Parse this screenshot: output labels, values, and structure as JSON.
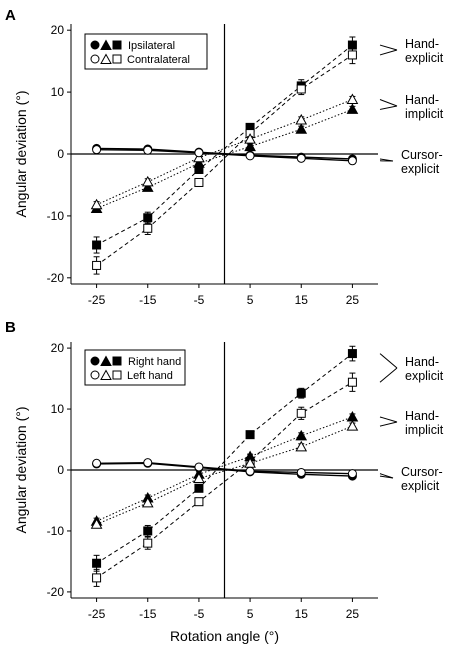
{
  "chart_data": [
    {
      "panel": "A",
      "type": "line",
      "xlabel": "",
      "ylabel": "Angular deviation (°)",
      "xlim": [
        -30,
        30
      ],
      "ylim": [
        -21,
        21
      ],
      "x_ticks": [
        -25,
        -15,
        -5,
        5,
        15,
        25
      ],
      "y_ticks": [
        -20,
        -10,
        0,
        10,
        20
      ],
      "legend": {
        "position": "top-left",
        "entries": [
          {
            "symbols": "●▲■",
            "label": "Ipsilateral"
          },
          {
            "symbols": "○△□",
            "label": "Contralateral"
          }
        ]
      },
      "x": [
        -25,
        -15,
        -5,
        5,
        15,
        25
      ],
      "series": [
        {
          "group": "Hand-explicit",
          "side": "ipsilateral",
          "marker": "square",
          "filled": true,
          "values": [
            -14.7,
            -10.3,
            -2.5,
            4.3,
            11.0,
            17.6
          ],
          "err": [
            1.3,
            0.9,
            0.6,
            0.5,
            1.0,
            1.3
          ]
        },
        {
          "group": "Hand-explicit",
          "side": "contralateral",
          "marker": "square",
          "filled": false,
          "values": [
            -18.0,
            -12.0,
            -4.6,
            3.3,
            10.5,
            16.0
          ],
          "err": [
            1.4,
            1.0,
            0.6,
            0.5,
            0.9,
            1.4
          ]
        },
        {
          "group": "Hand-implicit",
          "side": "ipsilateral",
          "marker": "triangle",
          "filled": true,
          "values": [
            -8.8,
            -5.4,
            -1.5,
            1.2,
            4.0,
            7.2
          ],
          "err": [
            0.5,
            0.5,
            0.4,
            0.4,
            0.5,
            0.5
          ]
        },
        {
          "group": "Hand-implicit",
          "side": "contralateral",
          "marker": "triangle",
          "filled": false,
          "values": [
            -8.2,
            -4.5,
            -0.6,
            2.4,
            5.5,
            8.8
          ],
          "err": [
            0.5,
            0.5,
            0.4,
            0.4,
            0.5,
            0.5
          ]
        },
        {
          "group": "Cursor-explicit",
          "side": "ipsilateral",
          "marker": "circle",
          "filled": true,
          "values": [
            0.9,
            0.8,
            0.3,
            -0.2,
            -0.5,
            -0.8
          ],
          "err": [
            0.3,
            0.3,
            0.3,
            0.3,
            0.3,
            0.3
          ]
        },
        {
          "group": "Cursor-explicit",
          "side": "contralateral",
          "marker": "circle",
          "filled": false,
          "values": [
            0.7,
            0.6,
            0.2,
            -0.3,
            -0.7,
            -1.1
          ],
          "err": [
            0.3,
            0.3,
            0.3,
            0.3,
            0.3,
            0.3
          ]
        }
      ],
      "annotations": [
        {
          "text": [
            "Hand-",
            "explicit"
          ],
          "group": "Hand-explicit"
        },
        {
          "text": [
            "Hand-",
            "implicit"
          ],
          "group": "Hand-implicit"
        },
        {
          "text": [
            "Cursor-",
            "explicit"
          ],
          "group": "Cursor-explicit"
        }
      ]
    },
    {
      "panel": "B",
      "type": "line",
      "xlabel": "Rotation angle (°)",
      "ylabel": "Angular deviation (°)",
      "xlim": [
        -30,
        30
      ],
      "ylim": [
        -21,
        21
      ],
      "x_ticks": [
        -25,
        -15,
        -5,
        5,
        15,
        25
      ],
      "y_ticks": [
        -20,
        -10,
        0,
        10,
        20
      ],
      "legend": {
        "position": "top-left",
        "entries": [
          {
            "symbols": "●▲■",
            "label": "Right hand"
          },
          {
            "symbols": "○△□",
            "label": "Left hand"
          }
        ]
      },
      "x": [
        -25,
        -15,
        -5,
        5,
        15,
        25
      ],
      "series": [
        {
          "group": "Hand-explicit",
          "side": "right",
          "marker": "square",
          "filled": true,
          "values": [
            -15.3,
            -10.0,
            -3.0,
            5.8,
            12.6,
            19.1
          ],
          "err": [
            1.3,
            0.9,
            0.6,
            0.5,
            0.8,
            1.2
          ]
        },
        {
          "group": "Hand-explicit",
          "side": "left",
          "marker": "square",
          "filled": false,
          "values": [
            -17.7,
            -12.0,
            -5.2,
            1.4,
            9.3,
            14.4
          ],
          "err": [
            1.4,
            1.0,
            0.6,
            0.6,
            1.0,
            1.5
          ]
        },
        {
          "group": "Hand-implicit",
          "side": "right",
          "marker": "triangle",
          "filled": true,
          "values": [
            -8.4,
            -4.6,
            -0.7,
            2.2,
            5.6,
            8.7
          ],
          "err": [
            0.5,
            0.5,
            0.4,
            0.4,
            0.5,
            0.5
          ]
        },
        {
          "group": "Hand-implicit",
          "side": "left",
          "marker": "triangle",
          "filled": false,
          "values": [
            -8.9,
            -5.4,
            -1.4,
            1.1,
            3.8,
            7.2
          ],
          "err": [
            0.5,
            0.5,
            0.4,
            0.4,
            0.5,
            0.5
          ]
        },
        {
          "group": "Cursor-explicit",
          "side": "right",
          "marker": "circle",
          "filled": true,
          "values": [
            1.0,
            1.1,
            0.4,
            -0.3,
            -0.7,
            -1.0
          ],
          "err": [
            0.3,
            0.3,
            0.3,
            0.3,
            0.3,
            0.3
          ]
        },
        {
          "group": "Cursor-explicit",
          "side": "left",
          "marker": "circle",
          "filled": false,
          "values": [
            1.1,
            1.2,
            0.5,
            -0.2,
            -0.4,
            -0.6
          ],
          "err": [
            0.3,
            0.3,
            0.3,
            0.3,
            0.3,
            0.3
          ]
        }
      ],
      "annotations": [
        {
          "text": [
            "Hand-",
            "explicit"
          ],
          "group": "Hand-explicit"
        },
        {
          "text": [
            "Hand-",
            "implicit"
          ],
          "group": "Hand-implicit"
        },
        {
          "text": [
            "Cursor-",
            "explicit"
          ],
          "group": "Cursor-explicit"
        }
      ]
    }
  ]
}
